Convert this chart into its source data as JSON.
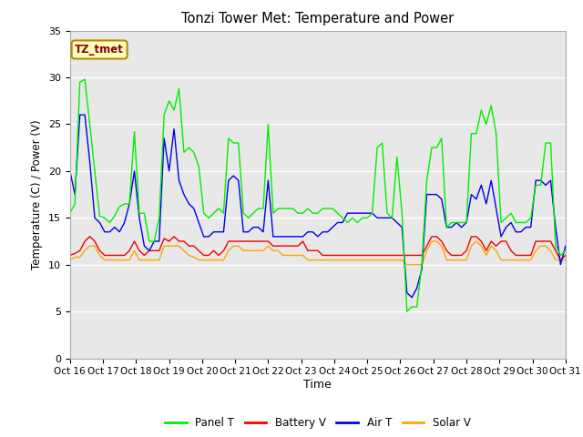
{
  "title": "Tonzi Tower Met: Temperature and Power",
  "xlabel": "Time",
  "ylabel": "Temperature (C) / Power (V)",
  "ylim": [
    0,
    35
  ],
  "yticks": [
    0,
    5,
    10,
    15,
    20,
    25,
    30,
    35
  ],
  "x_labels": [
    "Oct 16",
    "Oct 17",
    "Oct 18",
    "Oct 19",
    "Oct 20",
    "Oct 21",
    "Oct 22",
    "Oct 23",
    "Oct 24",
    "Oct 25",
    "Oct 26",
    "Oct 27",
    "Oct 28",
    "Oct 29",
    "Oct 30",
    "Oct 31"
  ],
  "annotation_text": "TZ_tmet",
  "annotation_box_color": "#FFFFC0",
  "annotation_text_color": "#880000",
  "plot_bg_color": "#E8E8E8",
  "grid_color": "white",
  "line_colors": {
    "panel_t": "#00EE00",
    "battery_v": "#EE0000",
    "air_t": "#0000EE",
    "solar_v": "#FFA500"
  },
  "panel_t": [
    15.5,
    16.5,
    29.5,
    29.8,
    25.0,
    20.0,
    15.2,
    15.0,
    14.5,
    15.2,
    16.2,
    16.5,
    16.5,
    24.2,
    15.5,
    15.5,
    12.5,
    12.5,
    15.0,
    26.0,
    27.5,
    26.5,
    28.8,
    22.0,
    22.5,
    22.0,
    20.5,
    15.5,
    15.0,
    15.5,
    16.0,
    15.5,
    23.5,
    23.0,
    23.0,
    15.5,
    15.0,
    15.5,
    16.0,
    16.0,
    25.0,
    15.5,
    16.0,
    16.0,
    16.0,
    16.0,
    15.5,
    15.5,
    16.0,
    15.5,
    15.5,
    16.0,
    16.0,
    16.0,
    15.5,
    15.0,
    14.5,
    15.0,
    14.5,
    15.0,
    15.0,
    15.5,
    22.5,
    23.0,
    15.5,
    15.0,
    21.5,
    15.5,
    5.0,
    5.5,
    5.5,
    10.0,
    19.0,
    22.5,
    22.5,
    23.5,
    14.0,
    14.5,
    14.5,
    14.5,
    14.5,
    24.0,
    24.0,
    26.5,
    25.0,
    27.0,
    24.0,
    14.5,
    15.0,
    15.5,
    14.5,
    14.5,
    14.5,
    15.0,
    18.5,
    18.5,
    23.0,
    23.0,
    12.0,
    11.0,
    11.5
  ],
  "battery_v": [
    11.0,
    11.2,
    11.5,
    12.5,
    13.0,
    12.5,
    11.5,
    11.0,
    11.0,
    11.0,
    11.0,
    11.0,
    11.5,
    12.5,
    11.5,
    11.0,
    11.5,
    11.5,
    11.5,
    12.8,
    12.5,
    13.0,
    12.5,
    12.5,
    12.0,
    12.0,
    11.5,
    11.0,
    11.0,
    11.5,
    11.0,
    11.5,
    12.5,
    12.5,
    12.5,
    12.5,
    12.5,
    12.5,
    12.5,
    12.5,
    12.5,
    12.0,
    12.0,
    12.0,
    12.0,
    12.0,
    12.0,
    12.5,
    11.5,
    11.5,
    11.5,
    11.0,
    11.0,
    11.0,
    11.0,
    11.0,
    11.0,
    11.0,
    11.0,
    11.0,
    11.0,
    11.0,
    11.0,
    11.0,
    11.0,
    11.0,
    11.0,
    11.0,
    11.0,
    11.0,
    11.0,
    11.0,
    12.0,
    13.0,
    13.0,
    12.5,
    11.5,
    11.0,
    11.0,
    11.0,
    11.5,
    13.0,
    13.0,
    12.5,
    11.5,
    12.5,
    12.0,
    12.5,
    12.5,
    11.5,
    11.0,
    11.0,
    11.0,
    11.0,
    12.5,
    12.5,
    12.5,
    12.5,
    11.5,
    10.5,
    11.0
  ],
  "air_t": [
    20.0,
    17.5,
    26.0,
    26.0,
    21.0,
    15.0,
    14.5,
    13.5,
    13.5,
    14.0,
    13.5,
    14.5,
    16.5,
    20.0,
    15.0,
    12.0,
    11.5,
    12.5,
    12.5,
    23.5,
    20.0,
    24.5,
    19.0,
    17.5,
    16.5,
    16.0,
    14.5,
    13.0,
    13.0,
    13.5,
    13.5,
    13.5,
    19.0,
    19.5,
    19.0,
    13.5,
    13.5,
    14.0,
    14.0,
    13.5,
    19.0,
    13.0,
    13.0,
    13.0,
    13.0,
    13.0,
    13.0,
    13.0,
    13.5,
    13.5,
    13.0,
    13.5,
    13.5,
    14.0,
    14.5,
    14.5,
    15.5,
    15.5,
    15.5,
    15.5,
    15.5,
    15.5,
    15.0,
    15.0,
    15.0,
    15.0,
    14.5,
    14.0,
    7.0,
    6.5,
    7.5,
    9.5,
    17.5,
    17.5,
    17.5,
    17.0,
    14.0,
    14.0,
    14.5,
    14.0,
    14.5,
    17.5,
    17.0,
    18.5,
    16.5,
    19.0,
    16.0,
    13.0,
    14.0,
    14.5,
    13.5,
    13.5,
    14.0,
    14.0,
    19.0,
    19.0,
    18.5,
    19.0,
    14.0,
    10.0,
    12.0
  ],
  "solar_v": [
    10.5,
    10.8,
    10.8,
    11.5,
    12.0,
    12.0,
    11.0,
    10.5,
    10.5,
    10.5,
    10.5,
    10.5,
    10.5,
    11.5,
    10.5,
    10.5,
    10.5,
    10.5,
    10.5,
    12.0,
    12.0,
    12.0,
    12.0,
    11.5,
    11.0,
    10.8,
    10.5,
    10.5,
    10.5,
    10.5,
    10.5,
    10.5,
    11.5,
    12.0,
    12.0,
    11.5,
    11.5,
    11.5,
    11.5,
    11.5,
    12.0,
    11.5,
    11.5,
    11.0,
    11.0,
    11.0,
    11.0,
    11.0,
    10.5,
    10.5,
    10.5,
    10.5,
    10.5,
    10.5,
    10.5,
    10.5,
    10.5,
    10.5,
    10.5,
    10.5,
    10.5,
    10.5,
    10.5,
    10.5,
    10.5,
    10.5,
    10.5,
    10.5,
    10.0,
    10.0,
    10.0,
    10.0,
    11.5,
    12.5,
    12.5,
    12.0,
    10.5,
    10.5,
    10.5,
    10.5,
    10.5,
    12.0,
    12.5,
    12.0,
    11.0,
    12.0,
    11.5,
    10.5,
    10.5,
    10.5,
    10.5,
    10.5,
    10.5,
    10.5,
    11.5,
    12.0,
    12.0,
    11.5,
    10.5,
    10.5,
    10.5
  ]
}
